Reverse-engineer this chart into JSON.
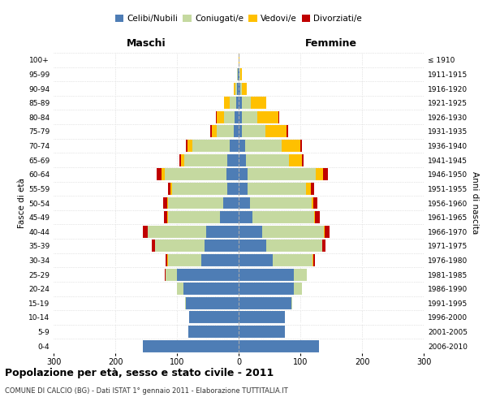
{
  "age_groups": [
    "0-4",
    "5-9",
    "10-14",
    "15-19",
    "20-24",
    "25-29",
    "30-34",
    "35-39",
    "40-44",
    "45-49",
    "50-54",
    "55-59",
    "60-64",
    "65-69",
    "70-74",
    "75-79",
    "80-84",
    "85-89",
    "90-94",
    "95-99",
    "100+"
  ],
  "birth_years": [
    "2006-2010",
    "2001-2005",
    "1996-2000",
    "1991-1995",
    "1986-1990",
    "1981-1985",
    "1976-1980",
    "1971-1975",
    "1966-1970",
    "1961-1965",
    "1956-1960",
    "1951-1955",
    "1946-1950",
    "1941-1945",
    "1936-1940",
    "1931-1935",
    "1926-1930",
    "1921-1925",
    "1916-1920",
    "1911-1915",
    "≤ 1910"
  ],
  "colors": {
    "celibi": "#4e7db5",
    "coniugati": "#c5d9a0",
    "vedovi": "#ffc000",
    "divorziati": "#c00000"
  },
  "maschi": {
    "celibi": [
      155,
      82,
      80,
      85,
      90,
      100,
      60,
      55,
      52,
      30,
      25,
      18,
      20,
      18,
      15,
      8,
      6,
      4,
      2,
      1,
      0
    ],
    "coniugati": [
      0,
      0,
      0,
      2,
      10,
      18,
      55,
      80,
      95,
      85,
      90,
      90,
      100,
      70,
      60,
      28,
      18,
      10,
      3,
      1,
      0
    ],
    "vedovi": [
      0,
      0,
      0,
      0,
      0,
      1,
      1,
      1,
      1,
      1,
      1,
      2,
      5,
      5,
      8,
      8,
      12,
      10,
      3,
      1,
      0
    ],
    "divorziati": [
      0,
      0,
      0,
      0,
      0,
      1,
      2,
      5,
      7,
      5,
      6,
      5,
      8,
      3,
      2,
      2,
      1,
      0,
      0,
      0,
      0
    ]
  },
  "femmine": {
    "celibi": [
      130,
      75,
      75,
      85,
      90,
      90,
      55,
      45,
      38,
      22,
      18,
      14,
      15,
      12,
      10,
      5,
      5,
      5,
      2,
      1,
      0
    ],
    "coniugati": [
      0,
      0,
      0,
      2,
      12,
      20,
      65,
      90,
      100,
      100,
      100,
      95,
      110,
      70,
      60,
      38,
      25,
      15,
      3,
      1,
      0
    ],
    "vedovi": [
      0,
      0,
      0,
      0,
      0,
      0,
      1,
      1,
      2,
      2,
      3,
      8,
      12,
      20,
      30,
      35,
      35,
      25,
      8,
      3,
      1
    ],
    "divorziati": [
      0,
      0,
      0,
      0,
      0,
      1,
      3,
      5,
      8,
      8,
      6,
      5,
      8,
      3,
      3,
      2,
      1,
      0,
      0,
      0,
      0
    ]
  },
  "title": "Popolazione per età, sesso e stato civile - 2011",
  "subtitle": "COMUNE DI CALCIO (BG) - Dati ISTAT 1° gennaio 2011 - Elaborazione TUTTITALIA.IT",
  "xlabel_left": "Maschi",
  "xlabel_right": "Femmine",
  "ylabel_left": "Fasce di età",
  "ylabel_right": "Anni di nascita",
  "xlim": 300,
  "background_color": "#ffffff",
  "grid_color": "#cccccc"
}
